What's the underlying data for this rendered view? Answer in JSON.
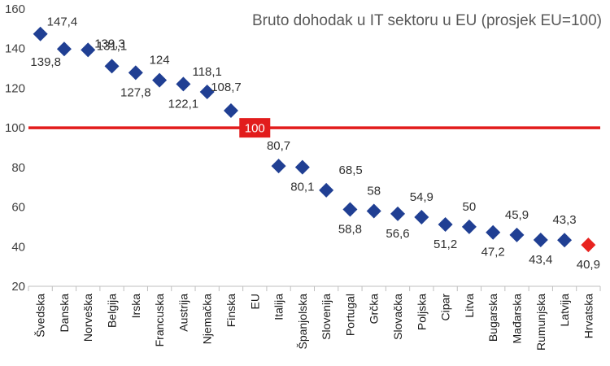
{
  "chart_data": {
    "type": "scatter",
    "title": "Bruto dohodak u IT sektoru u EU (prosjek EU=100)",
    "xlabel": "",
    "ylabel": "",
    "ylim": [
      20,
      160
    ],
    "yticks": [
      "20",
      "40",
      "60",
      "80",
      "100",
      "120",
      "140",
      "160"
    ],
    "grid": false,
    "legend": "none",
    "categories": [
      "Švedska",
      "Danska",
      "Norveška",
      "Belgija",
      "Irska",
      "Francuska",
      "Austrija",
      "Njemačka",
      "Finska",
      "EU",
      "Italija",
      "Španjolska",
      "Slovenija",
      "Portugal",
      "Grčka",
      "Slovačka",
      "Poljska",
      "Cipar",
      "Litva",
      "Bugarska",
      "Mađarska",
      "Rumunjska",
      "Latvija",
      "Hrvatska"
    ],
    "values": [
      147.4,
      139.8,
      139.3,
      131.1,
      127.8,
      124,
      122.1,
      118.1,
      108.7,
      null,
      80.7,
      80.1,
      68.5,
      58.8,
      58,
      56.6,
      54.9,
      51.2,
      50,
      47.2,
      45.9,
      43.4,
      43.3,
      40.9
    ],
    "labels": [
      "147,4",
      "139,8",
      "139,3",
      "131,1",
      "127,8",
      "124",
      "122,1",
      "118,1",
      "108,7",
      "",
      "80,7",
      "80,1",
      "68,5",
      "58,8",
      "58",
      "56,6",
      "54,9",
      "51,2",
      "50",
      "47,2",
      "45,9",
      "43,4",
      "43,3",
      "40,9"
    ],
    "highlight_category": "Hrvatska",
    "reference_line": {
      "value": 100,
      "label": "100"
    },
    "colors": {
      "marker": "#203f93",
      "highlight": "#e8231f",
      "reference": "#e21c1c",
      "axis": "#bfbfbf"
    }
  }
}
